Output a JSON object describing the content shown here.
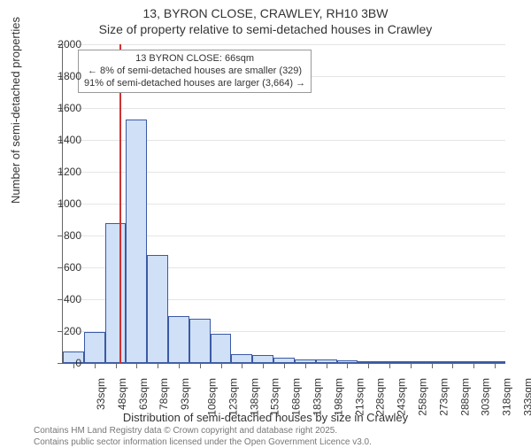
{
  "title": {
    "line1": "13, BYRON CLOSE, CRAWLEY, RH10 3BW",
    "line2": "Size of property relative to semi-detached houses in Crawley"
  },
  "y_axis": {
    "label": "Number of semi-detached properties",
    "min": 0,
    "max": 2000,
    "ticks": [
      0,
      200,
      400,
      600,
      800,
      1000,
      1200,
      1400,
      1600,
      1800,
      2000
    ]
  },
  "x_axis": {
    "label": "Distribution of semi-detached houses by size in Crawley",
    "tick_labels": [
      "33sqm",
      "48sqm",
      "63sqm",
      "78sqm",
      "93sqm",
      "108sqm",
      "123sqm",
      "138sqm",
      "153sqm",
      "168sqm",
      "183sqm",
      "198sqm",
      "213sqm",
      "228sqm",
      "243sqm",
      "258sqm",
      "273sqm",
      "288sqm",
      "303sqm",
      "318sqm",
      "333sqm"
    ]
  },
  "chart": {
    "type": "histogram",
    "bar_fill": "#cfe0f7",
    "bar_border": "#3b5aa3",
    "grid_color": "#e5e5e5",
    "axis_color": "#666666",
    "background_color": "#ffffff",
    "bar_values": [
      70,
      195,
      880,
      1530,
      680,
      295,
      280,
      185,
      55,
      50,
      35,
      20,
      20,
      15,
      10,
      5,
      4,
      3,
      0,
      2,
      2
    ],
    "marker": {
      "value_sqm": 66,
      "color": "#cc3333"
    }
  },
  "info_box": {
    "line1": "13 BYRON CLOSE: 66sqm",
    "line2": "← 8% of semi-detached houses are smaller (329)",
    "line3": "91% of semi-detached houses are larger (3,664) →"
  },
  "footnote": {
    "line1": "Contains HM Land Registry data © Crown copyright and database right 2025.",
    "line2": "Contains public sector information licensed under the Open Government Licence v3.0."
  }
}
